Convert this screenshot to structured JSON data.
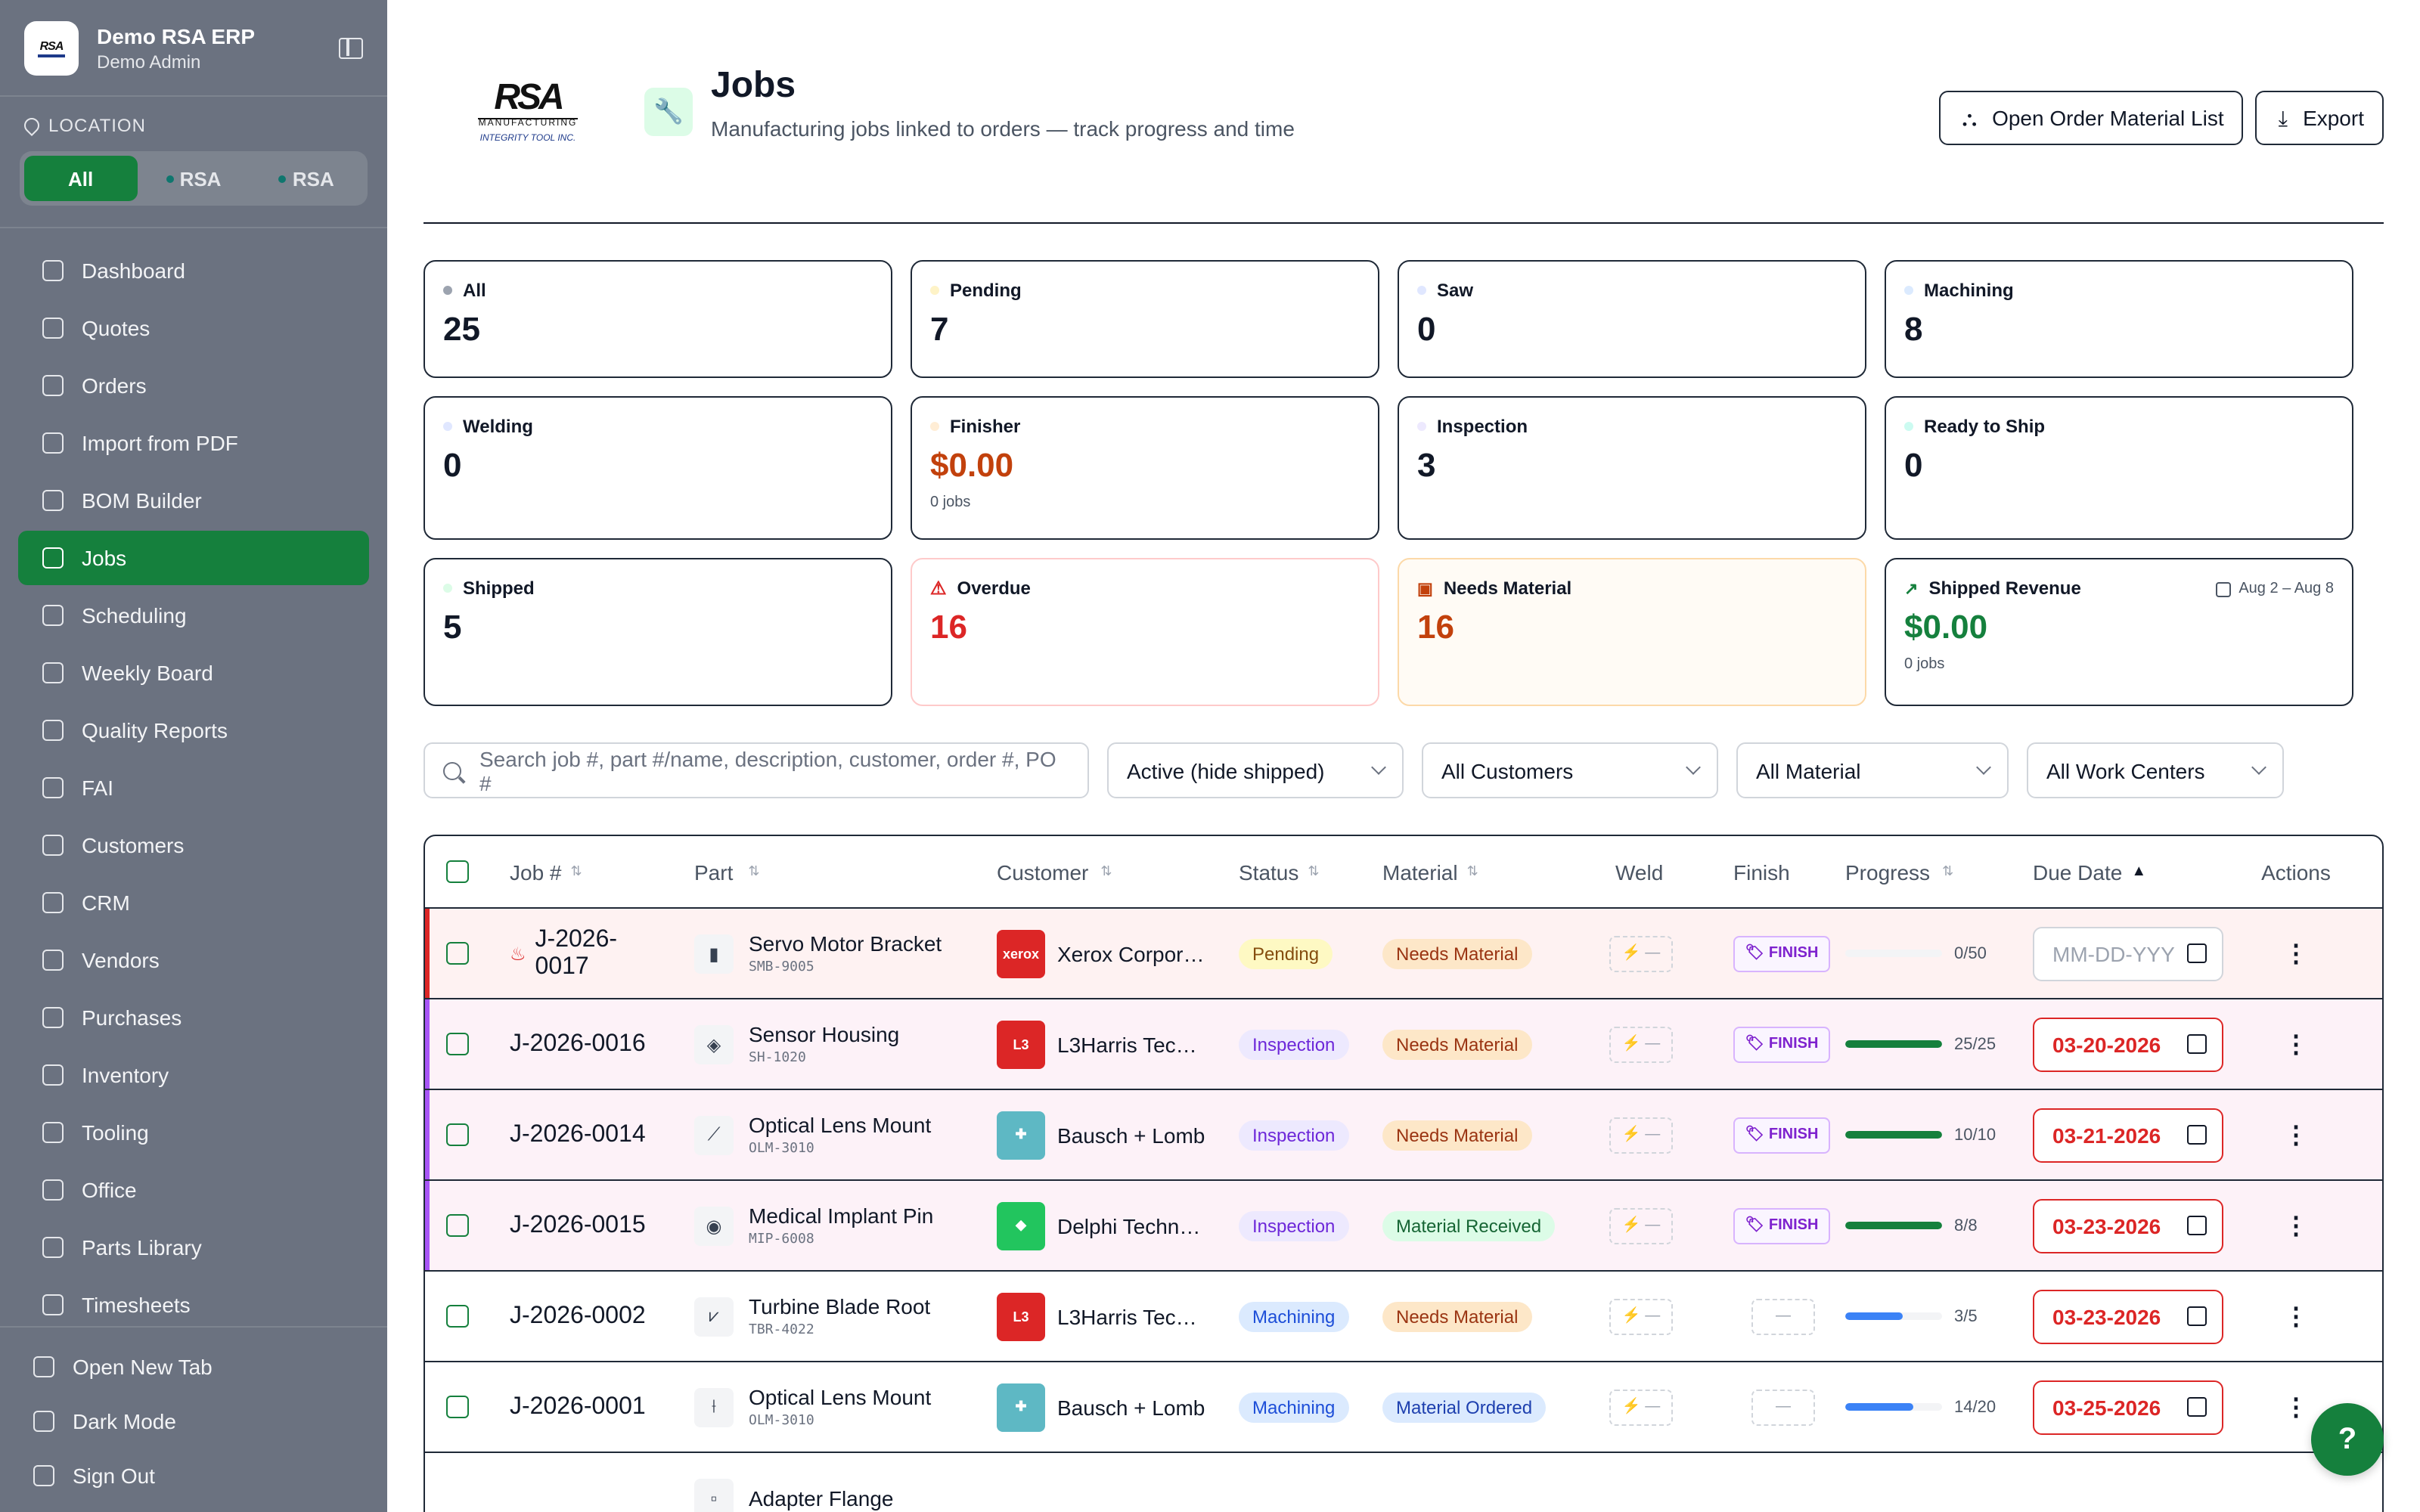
{
  "brand": {
    "logo_text": "RSA",
    "title": "Demo RSA ERP",
    "subtitle": "Demo Admin"
  },
  "location": {
    "label": "LOCATION",
    "options": [
      "All",
      "RSA",
      "RSA"
    ]
  },
  "nav": [
    {
      "label": "Dashboard",
      "icon": "grid-icon"
    },
    {
      "label": "Quotes",
      "icon": "document-icon"
    },
    {
      "label": "Orders",
      "icon": "cart-icon"
    },
    {
      "label": "Import from PDF",
      "icon": "file-import-icon"
    },
    {
      "label": "BOM Builder",
      "icon": "layers-icon"
    },
    {
      "label": "Jobs",
      "icon": "wrench-icon"
    },
    {
      "label": "Scheduling",
      "icon": "calendar-icon"
    },
    {
      "label": "Weekly Board",
      "icon": "clipboard-icon"
    },
    {
      "label": "Quality Reports",
      "icon": "clipboard-check-icon"
    },
    {
      "label": "FAI",
      "icon": "clipboard-list-icon"
    },
    {
      "label": "Customers",
      "icon": "users-icon"
    },
    {
      "label": "CRM",
      "icon": "user-contact-icon"
    },
    {
      "label": "Vendors",
      "icon": "building-icon"
    },
    {
      "label": "Purchases",
      "icon": "package-icon"
    },
    {
      "label": "Inventory",
      "icon": "boxes-icon"
    },
    {
      "label": "Tooling",
      "icon": "hammer-icon"
    },
    {
      "label": "Office",
      "icon": "office-icon"
    },
    {
      "label": "Parts Library",
      "icon": "library-icon"
    },
    {
      "label": "Timesheets",
      "icon": "clock-icon"
    }
  ],
  "footer_nav": [
    {
      "label": "Open New Tab",
      "icon": "external-link-icon"
    },
    {
      "label": "Dark Mode",
      "icon": "moon-icon"
    },
    {
      "label": "Sign Out",
      "icon": "sign-out-icon"
    }
  ],
  "header": {
    "logo_text": "RSA",
    "logo_sub": "MANUFACTURING",
    "logo_sub2": "INTEGRITY TOOL INC.",
    "title": "Jobs",
    "subtitle": "Manufacturing jobs linked to orders — track progress and time",
    "open_material_label": "Open Order Material List",
    "export_label": "Export"
  },
  "stats": [
    {
      "label": "All",
      "value": "25",
      "dot": "#9ca3af"
    },
    {
      "label": "Pending",
      "value": "7",
      "dot": "#fef3c7"
    },
    {
      "label": "Saw",
      "value": "0",
      "dot": "#e0e7ff"
    },
    {
      "label": "Machining",
      "value": "8",
      "dot": "#dbeafe"
    },
    {
      "label": "Welding",
      "value": "0",
      "dot": "#e0e7ff"
    },
    {
      "label": "Finisher",
      "value": "$0.00",
      "sub": "0 jobs",
      "dot": "#ffedd5"
    },
    {
      "label": "Inspection",
      "value": "3",
      "dot": "#ede9fe"
    },
    {
      "label": "Ready to Ship",
      "value": "0",
      "dot": "#ccfbf1"
    },
    {
      "label": "Shipped",
      "value": "5",
      "dot": "#dcfce7"
    },
    {
      "label": "Overdue",
      "value": "16"
    },
    {
      "label": "Needs Material",
      "value": "16"
    },
    {
      "label": "Shipped Revenue",
      "value": "$0.00",
      "sub": "0 jobs",
      "range": "Aug 2 – Aug 8"
    }
  ],
  "filters": {
    "search_placeholder": "Search job #, part #/name, description, customer, order #, PO #",
    "status": "Active (hide shipped)",
    "customers": "All Customers",
    "material": "All Material",
    "work_centers": "All Work Centers"
  },
  "table": {
    "columns": [
      "Job #",
      "Part",
      "Customer",
      "Status",
      "Material",
      "Weld",
      "Finish",
      "Progress",
      "Due Date",
      "Actions"
    ],
    "rows": [
      {
        "job": "J-2026-0017",
        "job_line1": "J-2026-",
        "job_line2": "0017",
        "part_name": "Servo Motor Bracket",
        "part_no": "SMB-9005",
        "customer": "Xerox Corpor…",
        "logo_text": "xerox",
        "logo_color": "#dc2626",
        "status": "Pending",
        "material": "Needs Material",
        "weld": "⚡ —",
        "finish": "FINISH",
        "progress": "0/50",
        "progress_pct": 0,
        "due": "MM-DD-YYY",
        "bar_color": "#15803d"
      },
      {
        "job": "J-2026-0016",
        "part_name": "Sensor Housing",
        "part_no": "SH-1020",
        "customer": "L3Harris Tec…",
        "logo_text": "L3",
        "logo_color": "#dc2626",
        "status": "Inspection",
        "material": "Needs Material",
        "weld": "⚡ —",
        "finish": "FINISH",
        "progress": "25/25",
        "progress_pct": 100,
        "due": "03-20-2026",
        "bar_color": "#15803d"
      },
      {
        "job": "J-2026-0014",
        "part_name": "Optical Lens Mount",
        "part_no": "OLM-3010",
        "customer": "Bausch + Lomb",
        "logo_text": "✚",
        "logo_color": "#5eb8c4",
        "status": "Inspection",
        "material": "Needs Material",
        "weld": "⚡ —",
        "finish": "FINISH",
        "progress": "10/10",
        "progress_pct": 100,
        "due": "03-21-2026",
        "bar_color": "#15803d"
      },
      {
        "job": "J-2026-0015",
        "part_name": "Medical Implant Pin",
        "part_no": "MIP-6008",
        "customer": "Delphi Techn…",
        "logo_text": "◆",
        "logo_color": "#22c55e",
        "status": "Inspection",
        "material": "Material Received",
        "weld": "⚡ —",
        "finish": "FINISH",
        "progress": "8/8",
        "progress_pct": 100,
        "due": "03-23-2026",
        "bar_color": "#15803d"
      },
      {
        "job": "J-2026-0002",
        "part_name": "Turbine Blade Root",
        "part_no": "TBR-4022",
        "customer": "L3Harris Tec…",
        "logo_text": "L3",
        "logo_color": "#dc2626",
        "status": "Machining",
        "material": "Needs Material",
        "weld": "⚡ —",
        "finish": "—",
        "progress": "3/5",
        "progress_pct": 60,
        "due": "03-23-2026",
        "bar_color": "#3b82f6"
      },
      {
        "job": "J-2026-0001",
        "part_name": "Optical Lens Mount",
        "part_no": "OLM-3010",
        "customer": "Bausch + Lomb",
        "logo_text": "✚",
        "logo_color": "#5eb8c4",
        "status": "Machining",
        "material": "Material Ordered",
        "weld": "⚡ —",
        "finish": "—",
        "progress": "14/20",
        "progress_pct": 70,
        "due": "03-25-2026",
        "bar_color": "#3b82f6"
      }
    ],
    "partial_row_part": "Adapter Flange"
  },
  "colors": {
    "accent": "#15803d",
    "overdue": "#dc2626",
    "needs_material": "#c2410c"
  }
}
